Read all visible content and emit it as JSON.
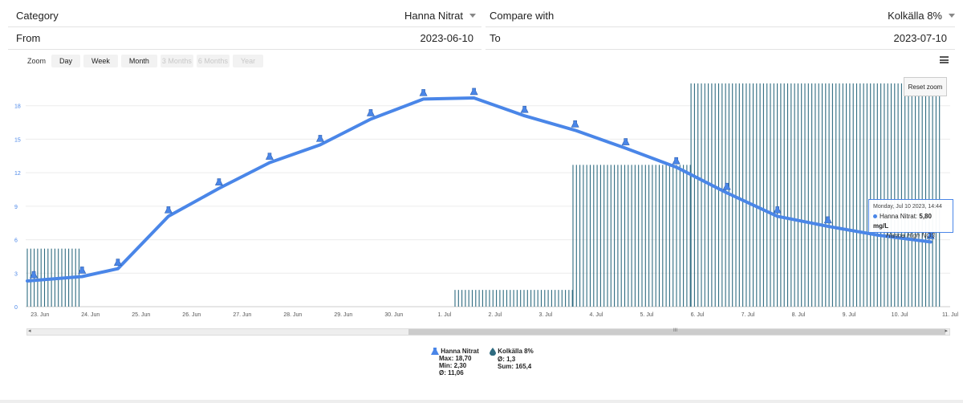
{
  "filters": {
    "category_label": "Category",
    "category_value": "Hanna Nitrat",
    "compare_label": "Compare with",
    "compare_value": "Kolkälla 8%",
    "from_label": "From",
    "from_value": "2023-06-10",
    "to_label": "To",
    "to_value": "2023-07-10"
  },
  "zoom": {
    "label": "Zoom",
    "buttons": [
      "Day",
      "Week",
      "Month",
      "3 Months",
      "6 Months",
      "Year"
    ],
    "disabled": [
      false,
      false,
      false,
      true,
      true,
      true
    ]
  },
  "reset_zoom": "Reset zoom",
  "tooltip": {
    "date": "Monday, Jul 10 2023, 14:44",
    "series": "Hanna Nitrat:",
    "value": "5,80 mg/L",
    "sub": "Hanna High NO3"
  },
  "legend": {
    "s1_name": "Hanna Nitrat",
    "s1_max": "Max: 18,70",
    "s1_min": "Min: 2,30",
    "s1_avg": "Ø: 11,06",
    "s2_name": "Kolkälla 8%",
    "s2_avg": "Ø: 1,3",
    "s2_sum": "Sum: 165,4"
  },
  "colors": {
    "line": "#4a86e8",
    "bars": "#2e6b80",
    "tick_label": "#4a86e8"
  },
  "chart_data": {
    "type": "line",
    "title": "",
    "xlabel": "",
    "ylabel": "",
    "x_start": "2023-06-22 18:00",
    "x_end": "2023-07-11",
    "ylim": [
      0,
      21
    ],
    "y_ticks": [
      0,
      3,
      6,
      9,
      12,
      15,
      18
    ],
    "x_tick_labels": [
      "23. Jun",
      "24. Jun",
      "25. Jun",
      "26. Jun",
      "27. Jun",
      "28. Jun",
      "29. Jun",
      "30. Jun",
      "1. Jul",
      "2. Jul",
      "3. Jul",
      "4. Jul",
      "5. Jul",
      "6. Jul",
      "7. Jul",
      "8. Jul",
      "9. Jul",
      "10. Jul",
      "11. Jul"
    ],
    "grid": true,
    "series": [
      {
        "name": "Hanna Nitrat",
        "type": "line",
        "points": [
          {
            "x": "2023-06-22 18:00",
            "y": 2.3
          },
          {
            "x": "2023-06-23 20:00",
            "y": 2.7
          },
          {
            "x": "2023-06-24 13:00",
            "y": 3.4
          },
          {
            "x": "2023-06-25 13:00",
            "y": 8.1
          },
          {
            "x": "2023-06-26 13:00",
            "y": 10.6
          },
          {
            "x": "2023-06-27 13:00",
            "y": 12.9
          },
          {
            "x": "2023-06-28 13:00",
            "y": 14.5
          },
          {
            "x": "2023-06-29 13:00",
            "y": 16.8
          },
          {
            "x": "2023-06-30 14:00",
            "y": 18.6
          },
          {
            "x": "2023-07-01 14:00",
            "y": 18.7
          },
          {
            "x": "2023-07-02 14:00",
            "y": 17.1
          },
          {
            "x": "2023-07-03 14:00",
            "y": 15.8
          },
          {
            "x": "2023-07-04 14:00",
            "y": 14.2
          },
          {
            "x": "2023-07-05 14:00",
            "y": 12.5
          },
          {
            "x": "2023-07-06 14:00",
            "y": 10.2
          },
          {
            "x": "2023-07-07 14:00",
            "y": 8.1
          },
          {
            "x": "2023-07-08 14:00",
            "y": 7.2
          },
          {
            "x": "2023-07-09 14:00",
            "y": 6.4
          },
          {
            "x": "2023-07-10 14:44",
            "y": 5.8
          }
        ]
      },
      {
        "name": "Kolkälla 8%",
        "type": "bar-steps",
        "segments": [
          {
            "from": "2023-06-22 18:00",
            "to": "2023-06-23 20:00",
            "value": 5.2
          },
          {
            "from": "2023-07-01 05:00",
            "to": "2023-07-03 13:00",
            "value": 1.5
          },
          {
            "from": "2023-07-03 13:00",
            "to": "2023-07-05 21:00",
            "value": 12.7
          },
          {
            "from": "2023-07-05 21:00",
            "to": "2023-07-10 19:00",
            "value": 20
          }
        ]
      }
    ]
  }
}
